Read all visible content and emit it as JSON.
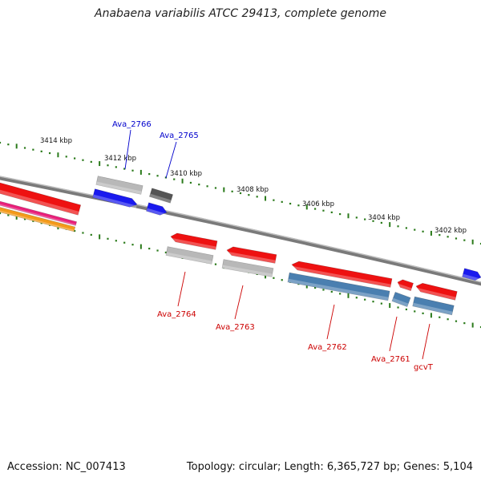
{
  "title": "Anabaena variabilis ATCC 29413, complete genome",
  "accession_text": "Accession: NC_007413",
  "stats_text": "Topology: circular; Length: 6,365,727 bp; Genes: 5,104",
  "colors": {
    "backbone": "#7a7a7a",
    "tick": "#2a7a1a",
    "gene_red": "#ee1111",
    "gene_blue": "#1a1aee",
    "gene_gray": "#b8b8b8",
    "gene_darkgray": "#555555",
    "gene_steel": "#4a7fb0",
    "gene_pink": "#e8207a",
    "gene_orange": "#f39a1a",
    "label_blue": "#0000cc",
    "label_red": "#cc0000"
  },
  "scale_labels": [
    "3414 kbp",
    "3412 kbp",
    "3410 kbp",
    "3408 kbp",
    "3406 kbp",
    "3404 kbp",
    "3402 kbp"
  ],
  "gene_labels": [
    {
      "text": "Ava_2766",
      "color": "label_blue"
    },
    {
      "text": "Ava_2765",
      "color": "label_blue"
    },
    {
      "text": "Ava_2764",
      "color": "label_red"
    },
    {
      "text": "Ava_2763",
      "color": "label_red"
    },
    {
      "text": "Ava_2762",
      "color": "label_red"
    },
    {
      "text": "Ava_2761",
      "color": "label_red"
    },
    {
      "text": "gcvT",
      "color": "label_red"
    }
  ]
}
